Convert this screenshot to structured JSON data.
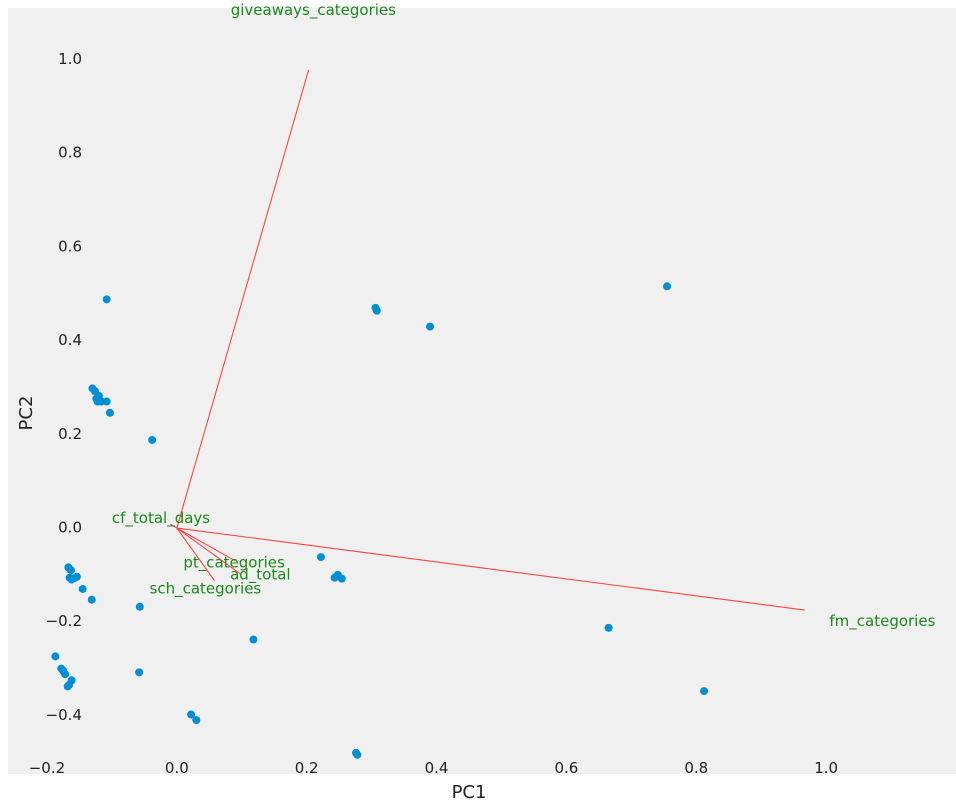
{
  "chart_data": {
    "type": "scatter",
    "title": "",
    "xlabel": "PC1",
    "ylabel": "PC2",
    "xlim": [
      -0.26,
      1.2
    ],
    "ylim": [
      -0.525,
      1.11
    ],
    "grid": false,
    "x_ticks": [
      {
        "value": -0.2,
        "label": "−0.2"
      },
      {
        "value": 0.0,
        "label": "0.0"
      },
      {
        "value": 0.2,
        "label": "0.2"
      },
      {
        "value": 0.4,
        "label": "0.4"
      },
      {
        "value": 0.6,
        "label": "0.6"
      },
      {
        "value": 0.8,
        "label": "0.8"
      },
      {
        "value": 1.0,
        "label": "1.0"
      }
    ],
    "y_ticks": [
      {
        "value": -0.4,
        "label": "−0.4"
      },
      {
        "value": -0.2,
        "label": "−0.2"
      },
      {
        "value": 0.0,
        "label": "0.0"
      },
      {
        "value": 0.2,
        "label": "0.2"
      },
      {
        "value": 0.4,
        "label": "0.4"
      },
      {
        "value": 0.6,
        "label": "0.6"
      },
      {
        "value": 0.8,
        "label": "0.8"
      },
      {
        "value": 1.0,
        "label": "1.0"
      }
    ],
    "point_color": "#008fd5",
    "vector_color": "#ff4444",
    "label_color": "#1a8a1a",
    "points": [
      {
        "x": -0.108,
        "y": 0.488
      },
      {
        "x": -0.13,
        "y": 0.298
      },
      {
        "x": -0.126,
        "y": 0.292
      },
      {
        "x": -0.124,
        "y": 0.276
      },
      {
        "x": -0.12,
        "y": 0.282
      },
      {
        "x": -0.122,
        "y": 0.27
      },
      {
        "x": -0.116,
        "y": 0.27
      },
      {
        "x": -0.108,
        "y": 0.27
      },
      {
        "x": -0.103,
        "y": 0.246
      },
      {
        "x": -0.038,
        "y": 0.188
      },
      {
        "x": 0.306,
        "y": 0.47
      },
      {
        "x": 0.308,
        "y": 0.464
      },
      {
        "x": 0.39,
        "y": 0.43
      },
      {
        "x": 0.755,
        "y": 0.516
      },
      {
        "x": 0.222,
        "y": -0.062
      },
      {
        "x": 0.243,
        "y": -0.106
      },
      {
        "x": 0.248,
        "y": -0.1
      },
      {
        "x": 0.254,
        "y": -0.108
      },
      {
        "x": -0.167,
        "y": -0.084
      },
      {
        "x": -0.163,
        "y": -0.09
      },
      {
        "x": -0.165,
        "y": -0.106
      },
      {
        "x": -0.162,
        "y": -0.11
      },
      {
        "x": -0.158,
        "y": -0.107
      },
      {
        "x": -0.154,
        "y": -0.104
      },
      {
        "x": -0.145,
        "y": -0.13
      },
      {
        "x": -0.131,
        "y": -0.153
      },
      {
        "x": -0.057,
        "y": -0.168
      },
      {
        "x": -0.058,
        "y": -0.308
      },
      {
        "x": 0.118,
        "y": -0.238
      },
      {
        "x": -0.187,
        "y": -0.274
      },
      {
        "x": -0.178,
        "y": -0.3
      },
      {
        "x": -0.175,
        "y": -0.305
      },
      {
        "x": -0.172,
        "y": -0.312
      },
      {
        "x": -0.162,
        "y": -0.325
      },
      {
        "x": -0.166,
        "y": -0.335
      },
      {
        "x": -0.168,
        "y": -0.338
      },
      {
        "x": 0.022,
        "y": -0.398
      },
      {
        "x": 0.03,
        "y": -0.41
      },
      {
        "x": 0.276,
        "y": -0.48
      },
      {
        "x": 0.278,
        "y": -0.484
      },
      {
        "x": 0.665,
        "y": -0.213
      },
      {
        "x": 0.812,
        "y": -0.348
      }
    ],
    "loadings": [
      {
        "name": "giveaways_categories",
        "x": 0.203,
        "y": 0.978,
        "label_x": 0.083,
        "label_y": 1.105
      },
      {
        "name": "fm_categories",
        "x": 0.967,
        "y": -0.175,
        "label_x": 1.005,
        "label_y": -0.2
      },
      {
        "name": "cf_total_days",
        "x": -0.01,
        "y": 0.008,
        "label_x": -0.1,
        "label_y": 0.02
      },
      {
        "name": "pt_categories",
        "x": 0.09,
        "y": -0.07,
        "label_x": 0.01,
        "label_y": -0.075
      },
      {
        "name": "ad_total",
        "x": 0.098,
        "y": -0.098,
        "label_x": 0.082,
        "label_y": -0.1
      },
      {
        "name": "sch_categories",
        "x": 0.058,
        "y": -0.112,
        "label_x": -0.042,
        "label_y": -0.13
      }
    ]
  }
}
